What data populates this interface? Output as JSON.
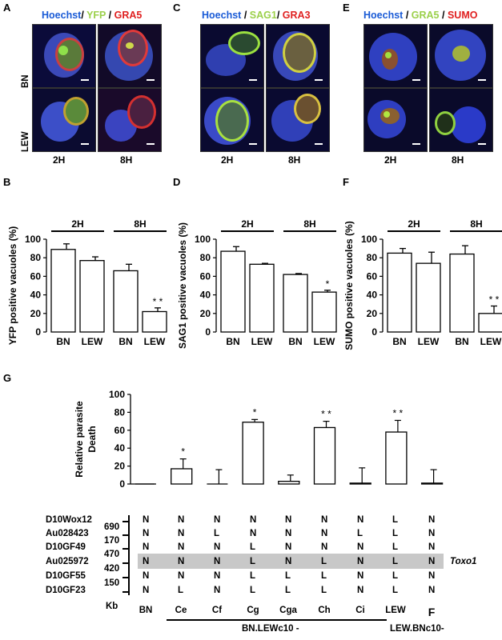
{
  "panels": {
    "A": {
      "label": "A",
      "h1": "Hoechst",
      "h2": "YFP",
      "h3": "GRA5"
    },
    "C": {
      "label": "C",
      "h1": "Hoechst",
      "h2": "SAG1",
      "h3": "GRA3"
    },
    "E": {
      "label": "E",
      "h1": "Hoechst",
      "h2": "GRA5",
      "h3": "SUMO"
    },
    "sep": "/",
    "rows": [
      "BN",
      "LEW"
    ],
    "cols": [
      "2H",
      "8H"
    ]
  },
  "bar_panels": [
    {
      "label": "B",
      "ylabel": "YFP positive vacuoles (%)"
    },
    {
      "label": "D",
      "ylabel": "SAG1 positive vacuoles (%)"
    },
    {
      "label": "F",
      "ylabel": "SUMO positive vacuoles (%)"
    }
  ],
  "panelG": {
    "label": "G",
    "ylabel_line1": "Relative parasite",
    "ylabel_line2": "Death"
  },
  "chart_data": [
    {
      "type": "bar",
      "categories": [
        "BN",
        "LEW",
        "BN",
        "LEW"
      ],
      "groups": [
        "2H",
        "8H"
      ],
      "values": [
        89,
        77,
        66,
        22
      ],
      "errors": [
        6,
        4,
        7,
        4
      ],
      "sig": [
        "",
        "",
        "",
        "* *"
      ],
      "ylabel": "YFP positive vacuoles (%)",
      "ylim": [
        0,
        100
      ],
      "yticks": [
        0,
        20,
        40,
        60,
        80,
        100
      ]
    },
    {
      "type": "bar",
      "categories": [
        "BN",
        "LEW",
        "BN",
        "LEW"
      ],
      "groups": [
        "2H",
        "8H"
      ],
      "values": [
        87,
        73,
        62,
        43
      ],
      "errors": [
        5,
        1,
        1,
        2
      ],
      "sig": [
        "",
        "",
        "",
        "*"
      ],
      "ylabel": "SAG1 positive vacuoles (%)",
      "ylim": [
        0,
        100
      ],
      "yticks": [
        0,
        20,
        40,
        60,
        80,
        100
      ]
    },
    {
      "type": "bar",
      "categories": [
        "BN",
        "LEW",
        "BN",
        "LEW"
      ],
      "groups": [
        "2H",
        "8H"
      ],
      "values": [
        85,
        74,
        84,
        20
      ],
      "errors": [
        5,
        12,
        9,
        8
      ],
      "sig": [
        "",
        "",
        "",
        "* *"
      ],
      "ylabel": "SUMO positive vacuoles (%)",
      "ylim": [
        0,
        100
      ],
      "yticks": [
        0,
        20,
        40,
        60,
        80,
        100
      ]
    },
    {
      "type": "bar",
      "categories": [
        "BN",
        "Ce",
        "Cf",
        "Cg",
        "Cga",
        "Ch",
        "Ci",
        "LEW",
        "F"
      ],
      "values": [
        0,
        17,
        0,
        69,
        3,
        63,
        1,
        58,
        1
      ],
      "errors": [
        0,
        11,
        16,
        3,
        7,
        7,
        17,
        13,
        15
      ],
      "sig": [
        "",
        "*",
        "",
        "*",
        "",
        "* *",
        "",
        "* *",
        ""
      ],
      "ylabel": "Relative parasite Death",
      "ylim": [
        0,
        100
      ],
      "yticks": [
        0,
        20,
        40,
        60,
        80,
        100
      ]
    }
  ],
  "genotype": {
    "markers": [
      "D10Wox12",
      "Au028423",
      "D10GF49",
      "Au025972",
      "D10GF55",
      "D10GF23"
    ],
    "kb": [
      "690",
      "170",
      "470",
      "420",
      "150"
    ],
    "kb_label": "Kb",
    "strains": [
      "BN",
      "Ce",
      "Cf",
      "Cg",
      "Cga",
      "Ch",
      "Ci",
      "LEW",
      "F"
    ],
    "calls": [
      [
        "N",
        "N",
        "N",
        "N",
        "N",
        "N",
        "N",
        "L",
        "N"
      ],
      [
        "N",
        "N",
        "L",
        "N",
        "N",
        "N",
        "L",
        "L",
        "N"
      ],
      [
        "N",
        "N",
        "N",
        "L",
        "N",
        "N",
        "N",
        "L",
        "N"
      ],
      [
        "N",
        "N",
        "N",
        "L",
        "N",
        "L",
        "N",
        "L",
        "N"
      ],
      [
        "N",
        "N",
        "N",
        "L",
        "L",
        "L",
        "N",
        "L",
        "N"
      ],
      [
        "N",
        "L",
        "N",
        "L",
        "L",
        "L",
        "N",
        "L",
        "N"
      ]
    ],
    "highlight_label": "Toxo1",
    "group1": "BN.LEWc10 -",
    "group2": "LEW.BNc10-"
  }
}
